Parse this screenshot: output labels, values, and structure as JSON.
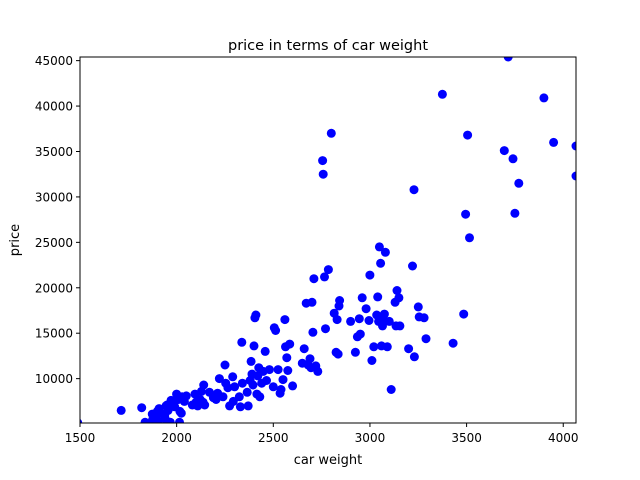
{
  "chart_data": {
    "type": "scatter",
    "title": "price in terms of car weight",
    "xlabel": "car weight",
    "ylabel": "price",
    "xlim": [
      1500,
      4066
    ],
    "ylim": [
      5118,
      45400
    ],
    "x_ticks": [
      1500,
      2000,
      2500,
      3000,
      3500,
      4000
    ],
    "y_ticks": [
      10000,
      15000,
      20000,
      25000,
      30000,
      35000,
      40000,
      45000
    ],
    "grid": false,
    "marker_color": "#0000ff",
    "series": [
      {
        "points": [
          [
            1488,
            5150
          ],
          [
            1713,
            6500
          ],
          [
            1819,
            6800
          ],
          [
            1837,
            5200
          ],
          [
            1874,
            6100
          ],
          [
            1876,
            5500
          ],
          [
            1889,
            5900
          ],
          [
            1900,
            6400
          ],
          [
            1905,
            5300
          ],
          [
            1909,
            6700
          ],
          [
            1918,
            6200
          ],
          [
            1938,
            6000
          ],
          [
            1940,
            5600
          ],
          [
            1945,
            7000
          ],
          [
            1950,
            7100
          ],
          [
            1956,
            6500
          ],
          [
            1967,
            5200
          ],
          [
            1971,
            7600
          ],
          [
            1975,
            7300
          ],
          [
            1989,
            7500
          ],
          [
            1990,
            6900
          ],
          [
            2000,
            8300
          ],
          [
            2010,
            7700
          ],
          [
            2015,
            5200
          ],
          [
            2017,
            6400
          ],
          [
            2024,
            6200
          ],
          [
            2028,
            8000
          ],
          [
            2040,
            7500
          ],
          [
            2050,
            8100
          ],
          [
            2081,
            7100
          ],
          [
            2095,
            8300
          ],
          [
            2100,
            7400
          ],
          [
            2109,
            7000
          ],
          [
            2122,
            7700
          ],
          [
            2128,
            8600
          ],
          [
            2137,
            7400
          ],
          [
            2140,
            9300
          ],
          [
            2145,
            7100
          ],
          [
            2170,
            8500
          ],
          [
            2190,
            7900
          ],
          [
            2204,
            7700
          ],
          [
            2212,
            8400
          ],
          [
            2221,
            10000
          ],
          [
            2240,
            8000
          ],
          [
            2250,
            11500
          ],
          [
            2254,
            9500
          ],
          [
            2265,
            9000
          ],
          [
            2274,
            7000
          ],
          [
            2290,
            10200
          ],
          [
            2293,
            7500
          ],
          [
            2300,
            9100
          ],
          [
            2324,
            8000
          ],
          [
            2330,
            6900
          ],
          [
            2340,
            9500
          ],
          [
            2337,
            14000
          ],
          [
            2365,
            8500
          ],
          [
            2370,
            7000
          ],
          [
            2380,
            9800
          ],
          [
            2385,
            11900
          ],
          [
            2390,
            10500
          ],
          [
            2395,
            9300
          ],
          [
            2400,
            13600
          ],
          [
            2405,
            16700
          ],
          [
            2410,
            17000
          ],
          [
            2415,
            8300
          ],
          [
            2420,
            10300
          ],
          [
            2425,
            11200
          ],
          [
            2430,
            8000
          ],
          [
            2440,
            9500
          ],
          [
            2448,
            10800
          ],
          [
            2458,
            13000
          ],
          [
            2465,
            9800
          ],
          [
            2480,
            11000
          ],
          [
            2500,
            9100
          ],
          [
            2505,
            15600
          ],
          [
            2512,
            15300
          ],
          [
            2525,
            11000
          ],
          [
            2535,
            8400
          ],
          [
            2540,
            8800
          ],
          [
            2550,
            9900
          ],
          [
            2560,
            16500
          ],
          [
            2563,
            13500
          ],
          [
            2570,
            12300
          ],
          [
            2575,
            10900
          ],
          [
            2585,
            13800
          ],
          [
            2600,
            9200
          ],
          [
            2650,
            11700
          ],
          [
            2660,
            13300
          ],
          [
            2670,
            18300
          ],
          [
            2680,
            11500
          ],
          [
            2690,
            12200
          ],
          [
            2695,
            11200
          ],
          [
            2700,
            18400
          ],
          [
            2705,
            15100
          ],
          [
            2710,
            21000
          ],
          [
            2720,
            11400
          ],
          [
            2730,
            10800
          ],
          [
            2755,
            34000
          ],
          [
            2758,
            32500
          ],
          [
            2765,
            21200
          ],
          [
            2770,
            15500
          ],
          [
            2785,
            22000
          ],
          [
            2800,
            37000
          ],
          [
            2815,
            17200
          ],
          [
            2825,
            12900
          ],
          [
            2830,
            16500
          ],
          [
            2835,
            12700
          ],
          [
            2840,
            18000
          ],
          [
            2843,
            18600
          ],
          [
            2900,
            16300
          ],
          [
            2925,
            12900
          ],
          [
            2935,
            14600
          ],
          [
            2945,
            16600
          ],
          [
            2950,
            14900
          ],
          [
            2960,
            18900
          ],
          [
            2980,
            17700
          ],
          [
            2995,
            16400
          ],
          [
            3000,
            21400
          ],
          [
            3010,
            12000
          ],
          [
            3020,
            13500
          ],
          [
            3035,
            17000
          ],
          [
            3040,
            19000
          ],
          [
            3045,
            16300
          ],
          [
            3049,
            24500
          ],
          [
            3055,
            22700
          ],
          [
            3060,
            13600
          ],
          [
            3065,
            15800
          ],
          [
            3070,
            16500
          ],
          [
            3075,
            17100
          ],
          [
            3080,
            23900
          ],
          [
            3090,
            13500
          ],
          [
            3100,
            16300
          ],
          [
            3110,
            8800
          ],
          [
            3130,
            18400
          ],
          [
            3135,
            15800
          ],
          [
            3140,
            19700
          ],
          [
            3150,
            18900
          ],
          [
            3155,
            15800
          ],
          [
            3200,
            13300
          ],
          [
            3220,
            22400
          ],
          [
            3228,
            30800
          ],
          [
            3230,
            12400
          ],
          [
            3250,
            17900
          ],
          [
            3255,
            16800
          ],
          [
            3280,
            16700
          ],
          [
            3290,
            14400
          ],
          [
            3375,
            41300
          ],
          [
            3430,
            13900
          ],
          [
            3485,
            17100
          ],
          [
            3495,
            28100
          ],
          [
            3505,
            36800
          ],
          [
            3515,
            25500
          ],
          [
            3695,
            35100
          ],
          [
            3715,
            45400
          ],
          [
            3740,
            34200
          ],
          [
            3750,
            28200
          ],
          [
            3770,
            31500
          ],
          [
            3900,
            40900
          ],
          [
            3950,
            36000
          ],
          [
            4066,
            35600
          ],
          [
            4066,
            32300
          ]
        ]
      }
    ]
  }
}
